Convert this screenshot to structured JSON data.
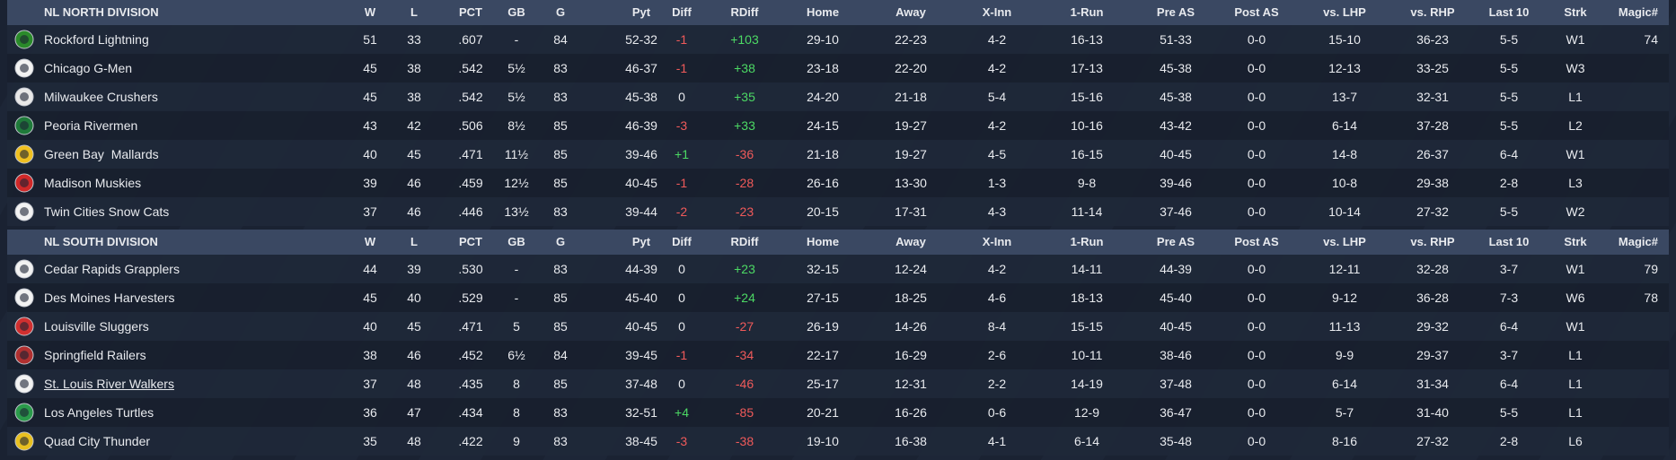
{
  "divisions": [
    {
      "name": "NL NORTH DIVISION",
      "columns": [
        "W",
        "L",
        "PCT",
        "GB",
        "G",
        "Pyt",
        "Diff",
        "RDiff",
        "Home",
        "Away",
        "X-Inn",
        "1-Run",
        "Pre AS",
        "Post AS",
        "vs. LHP",
        "vs. RHP",
        "Last 10",
        "Strk",
        "Magic#"
      ],
      "rows": [
        {
          "team": "Rockford Lightning",
          "cells": [
            "51",
            "33",
            ".607",
            "-",
            "84",
            "52-32",
            "-1",
            "+103",
            "29-10",
            "22-23",
            "4-2",
            "16-13",
            "51-33",
            "0-0",
            "15-10",
            "36-23",
            "5-5",
            "W1"
          ],
          "magic": "74"
        },
        {
          "team": "Chicago G-Men",
          "cells": [
            "45",
            "38",
            ".542",
            "5½",
            "83",
            "46-37",
            "-1",
            "+38",
            "23-18",
            "22-20",
            "4-2",
            "17-13",
            "45-38",
            "0-0",
            "12-13",
            "33-25",
            "5-5",
            "W3"
          ]
        },
        {
          "team": "Milwaukee Crushers",
          "cells": [
            "45",
            "38",
            ".542",
            "5½",
            "83",
            "45-38",
            "0",
            "+35",
            "24-20",
            "21-18",
            "5-4",
            "15-16",
            "45-38",
            "0-0",
            "13-7",
            "32-31",
            "5-5",
            "L1"
          ]
        },
        {
          "team": "Peoria Rivermen",
          "cells": [
            "43",
            "42",
            ".506",
            "8½",
            "85",
            "46-39",
            "-3",
            "+33",
            "24-15",
            "19-27",
            "4-2",
            "10-16",
            "43-42",
            "0-0",
            "6-14",
            "37-28",
            "5-5",
            "L2"
          ]
        },
        {
          "team": "Green Bay  Mallards",
          "cells": [
            "40",
            "45",
            ".471",
            "11½",
            "85",
            "39-46",
            "+1",
            "-36",
            "21-18",
            "19-27",
            "4-5",
            "16-15",
            "40-45",
            "0-0",
            "14-8",
            "26-37",
            "6-4",
            "W1"
          ]
        },
        {
          "team": "Madison Muskies",
          "cells": [
            "39",
            "46",
            ".459",
            "12½",
            "85",
            "40-45",
            "-1",
            "-28",
            "26-16",
            "13-30",
            "1-3",
            "9-8",
            "39-46",
            "0-0",
            "10-8",
            "29-38",
            "2-8",
            "L3"
          ]
        },
        {
          "team": "Twin Cities Snow Cats",
          "cells": [
            "37",
            "46",
            ".446",
            "13½",
            "83",
            "39-44",
            "-2",
            "-23",
            "20-15",
            "17-31",
            "4-3",
            "11-14",
            "37-46",
            "0-0",
            "10-14",
            "27-32",
            "5-5",
            "W2"
          ]
        }
      ]
    },
    {
      "name": "NL SOUTH DIVISION",
      "columns": [
        "W",
        "L",
        "PCT",
        "GB",
        "G",
        "Pyt",
        "Diff",
        "RDiff",
        "Home",
        "Away",
        "X-Inn",
        "1-Run",
        "Pre AS",
        "Post AS",
        "vs. LHP",
        "vs. RHP",
        "Last 10",
        "Strk",
        "Magic#"
      ],
      "rows": [
        {
          "team": "Cedar Rapids Grapplers",
          "cells": [
            "44",
            "39",
            ".530",
            "-",
            "83",
            "44-39",
            "0",
            "+23",
            "32-15",
            "12-24",
            "4-2",
            "14-11",
            "44-39",
            "0-0",
            "12-11",
            "32-28",
            "3-7",
            "W1"
          ],
          "magic": "79"
        },
        {
          "team": "Des Moines Harvesters",
          "cells": [
            "45",
            "40",
            ".529",
            "-",
            "85",
            "45-40",
            "0",
            "+24",
            "27-15",
            "18-25",
            "4-6",
            "18-13",
            "45-40",
            "0-0",
            "9-12",
            "36-28",
            "7-3",
            "W6"
          ],
          "magic": "78"
        },
        {
          "team": "Louisville Sluggers",
          "cells": [
            "40",
            "45",
            ".471",
            "5",
            "85",
            "40-45",
            "0",
            "-27",
            "26-19",
            "14-26",
            "8-4",
            "15-15",
            "40-45",
            "0-0",
            "11-13",
            "29-32",
            "6-4",
            "W1"
          ]
        },
        {
          "team": "Springfield Railers",
          "cells": [
            "38",
            "46",
            ".452",
            "6½",
            "84",
            "39-45",
            "-1",
            "-34",
            "22-17",
            "16-29",
            "2-6",
            "10-11",
            "38-46",
            "0-0",
            "9-9",
            "29-37",
            "3-7",
            "L1"
          ]
        },
        {
          "team": "St. Louis River Walkers",
          "cells": [
            "37",
            "48",
            ".435",
            "8",
            "85",
            "37-48",
            "0",
            "-46",
            "25-17",
            "12-31",
            "2-2",
            "14-19",
            "37-48",
            "0-0",
            "6-14",
            "31-34",
            "6-4",
            "L1"
          ]
        },
        {
          "team": "Los Angeles Turtles",
          "cells": [
            "36",
            "47",
            ".434",
            "8",
            "83",
            "32-51",
            "+4",
            "-85",
            "20-21",
            "16-26",
            "0-6",
            "12-9",
            "36-47",
            "0-0",
            "5-7",
            "31-40",
            "5-5",
            "L1"
          ]
        },
        {
          "team": "Quad City Thunder",
          "cells": [
            "35",
            "48",
            ".422",
            "9",
            "83",
            "38-45",
            "-3",
            "-38",
            "19-10",
            "16-38",
            "4-1",
            "6-14",
            "35-48",
            "0-0",
            "8-16",
            "27-32",
            "2-8",
            "L6"
          ]
        }
      ]
    }
  ]
}
